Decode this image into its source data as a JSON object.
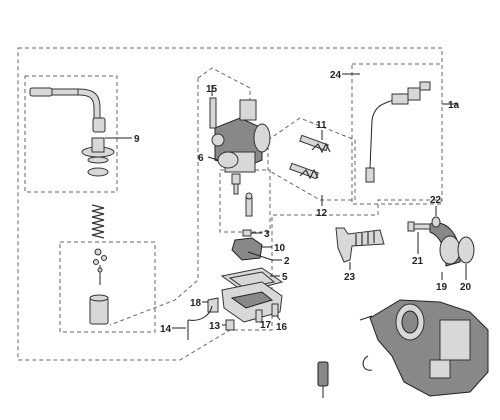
{
  "callouts": {
    "c1a": "1a",
    "c2": "2",
    "c3": "3",
    "c5": "5",
    "c6": "6",
    "c9": "9",
    "c10": "10",
    "c11": "11",
    "c12": "12",
    "c13": "13",
    "c14": "14",
    "c15": "15",
    "c16": "16",
    "c17": "17",
    "c18": "18",
    "c19": "19",
    "c20": "20",
    "c21": "21",
    "c22": "22",
    "c23": "23",
    "c24": "24"
  }
}
